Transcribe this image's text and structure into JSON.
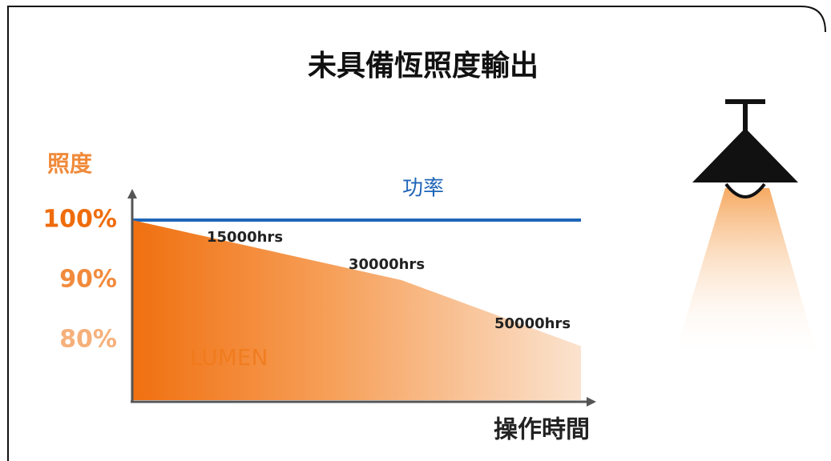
{
  "chart_data": {
    "type": "area",
    "title": "未具備恆照度輸出",
    "y_label": "照度",
    "x_label": "操作時間",
    "x": [
      0,
      15000,
      30000,
      50000
    ],
    "xlim": [
      0,
      50000
    ],
    "ylim": [
      70,
      104
    ],
    "yticks": [
      {
        "value": 100,
        "label": "100%"
      },
      {
        "value": 90,
        "label": "90%"
      },
      {
        "value": 80,
        "label": "80%"
      }
    ],
    "series": [
      {
        "name": "功率",
        "color": "#1f66b8",
        "values": [
          100,
          100,
          100,
          100
        ]
      },
      {
        "name": "LUMEN",
        "color": "#f07a1a",
        "values": [
          100,
          95,
          90,
          79
        ]
      }
    ],
    "annotations": [
      "15000hrs",
      "30000hrs",
      "50000hrs"
    ]
  }
}
